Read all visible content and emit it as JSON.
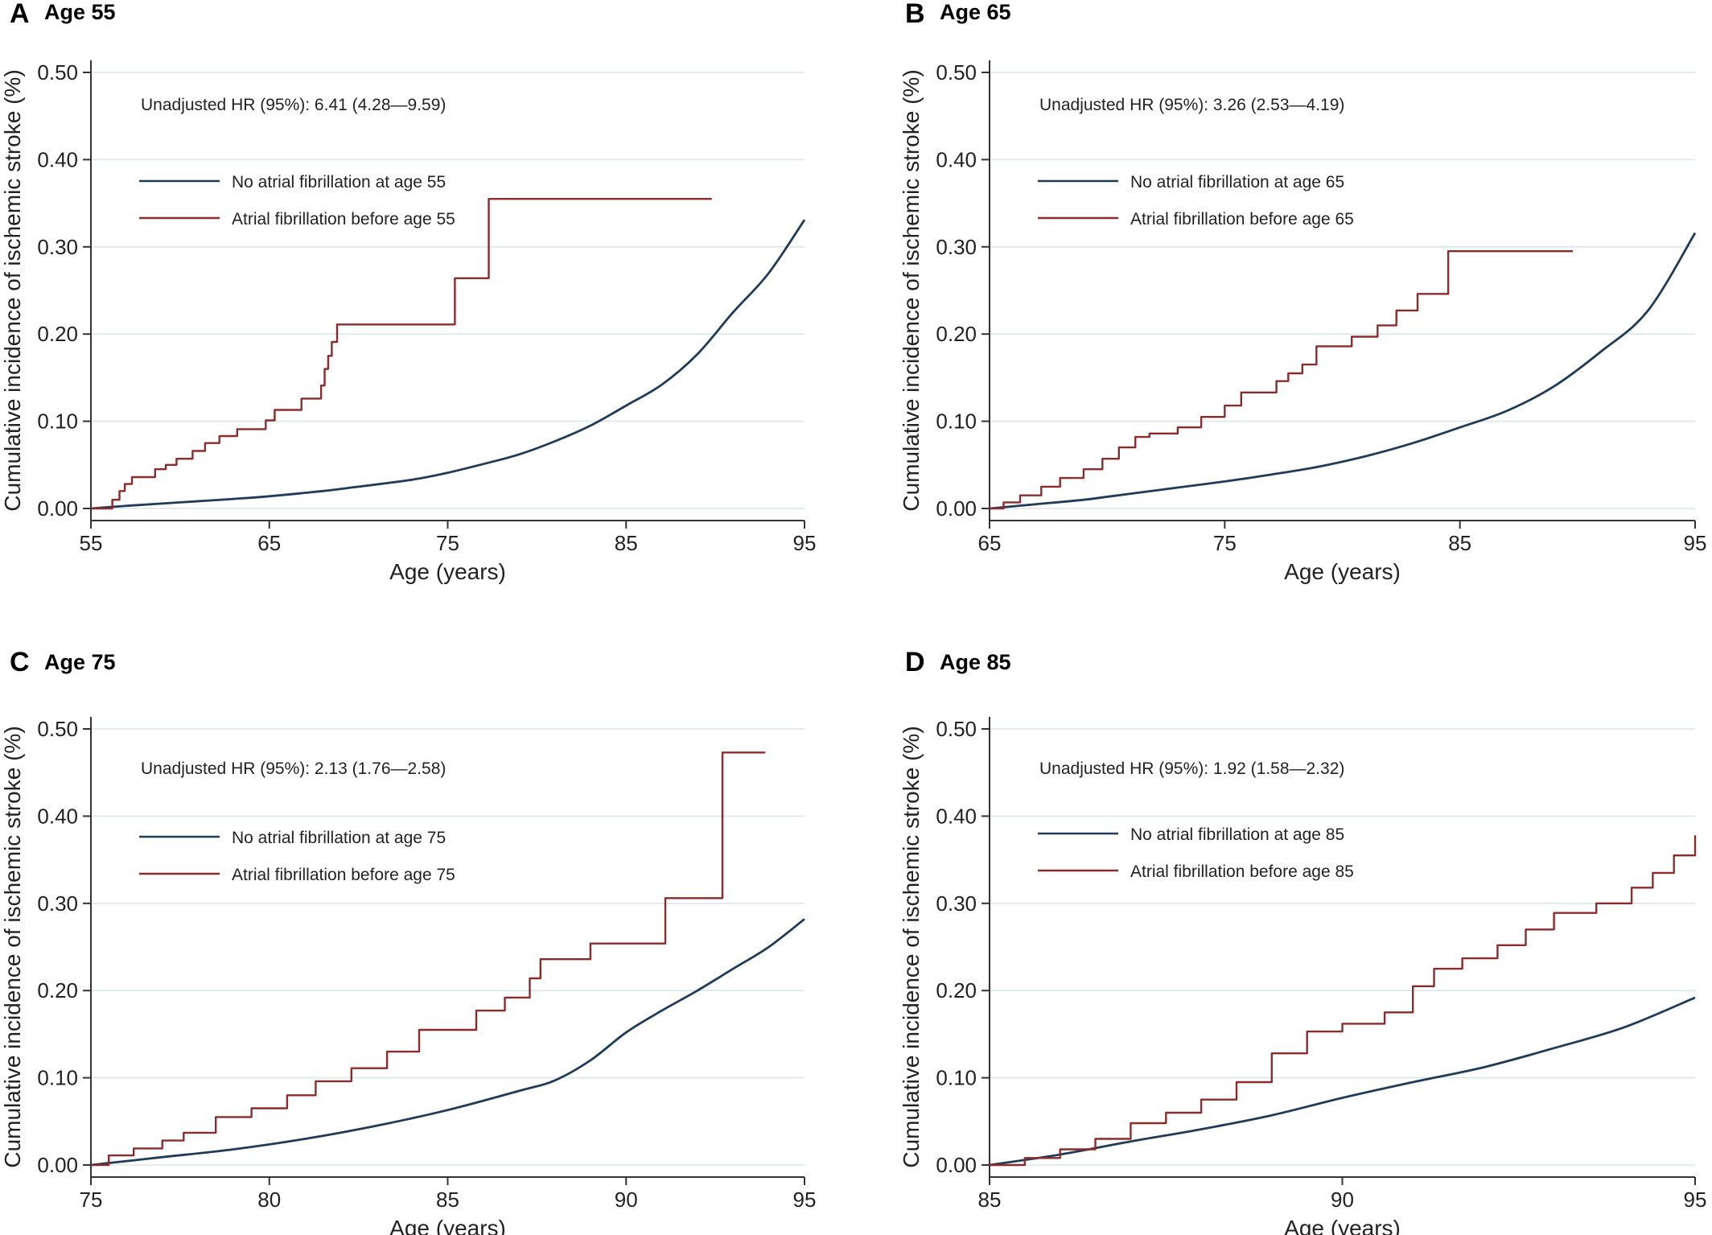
{
  "figure": {
    "colors": {
      "no_af": "#1f3b57",
      "af": "#8c2b2b",
      "grid": "#dbe6ea",
      "axis": "#333333"
    }
  },
  "chart_data": [
    {
      "type": "line",
      "panel": "A",
      "title": "Age 55",
      "xlabel": "Age (years)",
      "ylabel": "Cumulative incidence of ischemic stroke (%)",
      "xlim": [
        55,
        95
      ],
      "ylim": [
        0,
        0.5
      ],
      "xticks": [
        "55",
        "65",
        "75",
        "85",
        "95"
      ],
      "yticks": [
        "0.00",
        "0.10",
        "0.20",
        "0.30",
        "0.40",
        "0.50"
      ],
      "annotation": "Unadjusted HR (95%): 6.41 (4.28—9.59)",
      "legend": [
        "No atrial fibrillation at age 55",
        "Atrial fibrillation before age 55"
      ],
      "series": [
        {
          "name": "No atrial fibrillation at age 55",
          "style": "smooth",
          "x": [
            55,
            57,
            60,
            63,
            65,
            68,
            70,
            73,
            75,
            77,
            79,
            81,
            83,
            85,
            87,
            89,
            91,
            93,
            95
          ],
          "y": [
            0,
            0.003,
            0.007,
            0.011,
            0.014,
            0.02,
            0.025,
            0.033,
            0.041,
            0.051,
            0.062,
            0.077,
            0.095,
            0.118,
            0.142,
            0.177,
            0.225,
            0.27,
            0.331
          ]
        },
        {
          "name": "Atrial fibrillation before age 55",
          "style": "step",
          "x": [
            55,
            56.2,
            56.6,
            56.9,
            57.3,
            58.6,
            59.2,
            59.8,
            60.7,
            61.4,
            62.2,
            63.2,
            64.8,
            65.3,
            66.8,
            67.9,
            68.1,
            68.3,
            68.5,
            68.8,
            75.4,
            77.3,
            89.8
          ],
          "y": [
            0,
            0.01,
            0.02,
            0.028,
            0.036,
            0.045,
            0.05,
            0.057,
            0.066,
            0.075,
            0.083,
            0.091,
            0.101,
            0.113,
            0.126,
            0.141,
            0.16,
            0.175,
            0.191,
            0.211,
            0.264,
            0.355,
            0.355
          ]
        }
      ]
    },
    {
      "type": "line",
      "panel": "B",
      "title": "Age 65",
      "xlabel": "Age (years)",
      "ylabel": "Cumulative incidence of ischemic stroke (%)",
      "xlim": [
        65,
        95
      ],
      "ylim": [
        0,
        0.5
      ],
      "xticks": [
        "65",
        "75",
        "85",
        "95"
      ],
      "yticks": [
        "0.00",
        "0.10",
        "0.20",
        "0.30",
        "0.40",
        "0.50"
      ],
      "annotation": "Unadjusted HR (95%): 3.26 (2.53—4.19)",
      "legend": [
        "No atrial fibrillation at age 65",
        "Atrial fibrillation before age 65"
      ],
      "series": [
        {
          "name": "No atrial fibrillation at age 65",
          "style": "smooth",
          "x": [
            65,
            67,
            69,
            71,
            73,
            75,
            77,
            79,
            81,
            83,
            85,
            87,
            89,
            91,
            93,
            95
          ],
          "y": [
            0,
            0.005,
            0.01,
            0.017,
            0.024,
            0.031,
            0.039,
            0.048,
            0.06,
            0.075,
            0.093,
            0.112,
            0.14,
            0.18,
            0.227,
            0.316
          ]
        },
        {
          "name": "Atrial fibrillation before age 65",
          "style": "step",
          "x": [
            65,
            65.6,
            66.3,
            67.2,
            68,
            69,
            69.8,
            70.5,
            71.2,
            71.8,
            73,
            74,
            75,
            75.7,
            77.2,
            77.7,
            78.3,
            78.9,
            80.4,
            81.5,
            82.3,
            83.2,
            84.5,
            89.8
          ],
          "y": [
            0,
            0.007,
            0.015,
            0.025,
            0.035,
            0.045,
            0.057,
            0.07,
            0.082,
            0.086,
            0.093,
            0.105,
            0.118,
            0.133,
            0.146,
            0.155,
            0.165,
            0.186,
            0.197,
            0.21,
            0.227,
            0.246,
            0.295,
            0.295
          ]
        }
      ]
    },
    {
      "type": "line",
      "panel": "C",
      "title": "Age 75",
      "xlabel": "Age (years)",
      "ylabel": "Cumulative incidence of ischemic stroke (%)",
      "xlim": [
        75,
        95
      ],
      "ylim": [
        0,
        0.5
      ],
      "xticks": [
        "75",
        "80",
        "85",
        "90",
        "95"
      ],
      "yticks": [
        "0.00",
        "0.10",
        "0.20",
        "0.30",
        "0.40",
        "0.50"
      ],
      "annotation": "Unadjusted HR (95%): 2.13 (1.76—2.58)",
      "legend": [
        "No atrial fibrillation at age 75",
        "Atrial fibrillation before age 75"
      ],
      "series": [
        {
          "name": "No atrial fibrillation at age 75",
          "style": "smooth",
          "x": [
            75,
            77,
            79,
            81,
            83,
            85,
            87,
            88,
            89,
            90,
            91,
            92,
            93,
            94,
            95
          ],
          "y": [
            0,
            0.009,
            0.018,
            0.03,
            0.045,
            0.063,
            0.085,
            0.097,
            0.12,
            0.152,
            0.177,
            0.2,
            0.225,
            0.25,
            0.282
          ]
        },
        {
          "name": "Atrial fibrillation before age 75",
          "style": "step",
          "x": [
            75,
            75.5,
            76.2,
            77,
            77.6,
            78.5,
            79.5,
            80.5,
            81.3,
            82.3,
            83.3,
            84.2,
            85.8,
            86.6,
            87.3,
            87.6,
            89,
            91.1,
            92.7,
            93.9
          ],
          "y": [
            0,
            0.011,
            0.019,
            0.028,
            0.037,
            0.055,
            0.065,
            0.08,
            0.096,
            0.111,
            0.13,
            0.155,
            0.177,
            0.192,
            0.214,
            0.236,
            0.254,
            0.306,
            0.473,
            0.473
          ]
        }
      ]
    },
    {
      "type": "line",
      "panel": "D",
      "title": "Age 85",
      "xlabel": "Age (years)",
      "ylabel": "Cumulative incidence of ischemic stroke (%)",
      "xlim": [
        85,
        95
      ],
      "ylim": [
        0,
        0.5
      ],
      "xticks": [
        "85",
        "90",
        "95"
      ],
      "yticks": [
        "0.00",
        "0.10",
        "0.20",
        "0.30",
        "0.40",
        "0.50"
      ],
      "annotation": "Unadjusted HR (95%): 1.92 (1.58—2.32)",
      "legend": [
        "No atrial fibrillation at age 85",
        "Atrial fibrillation before age 85"
      ],
      "series": [
        {
          "name": "No atrial fibrillation at age 85",
          "style": "smooth",
          "x": [
            85,
            86,
            87,
            88,
            89,
            90,
            91,
            92,
            93,
            94,
            95
          ],
          "y": [
            0,
            0.012,
            0.027,
            0.041,
            0.057,
            0.077,
            0.095,
            0.112,
            0.134,
            0.158,
            0.192
          ]
        },
        {
          "name": "Atrial fibrillation before age 85",
          "style": "step",
          "x": [
            85,
            85.5,
            86,
            86.5,
            87,
            87.5,
            88,
            88.5,
            89,
            89.5,
            90,
            90.6,
            91,
            91.3,
            91.7,
            92.2,
            92.6,
            93,
            93.6,
            94.1,
            94.4,
            94.7,
            95
          ],
          "y": [
            0,
            0.008,
            0.018,
            0.03,
            0.048,
            0.06,
            0.075,
            0.095,
            0.128,
            0.153,
            0.162,
            0.175,
            0.205,
            0.225,
            0.237,
            0.252,
            0.27,
            0.289,
            0.3,
            0.318,
            0.335,
            0.355,
            0.378
          ]
        }
      ]
    }
  ]
}
